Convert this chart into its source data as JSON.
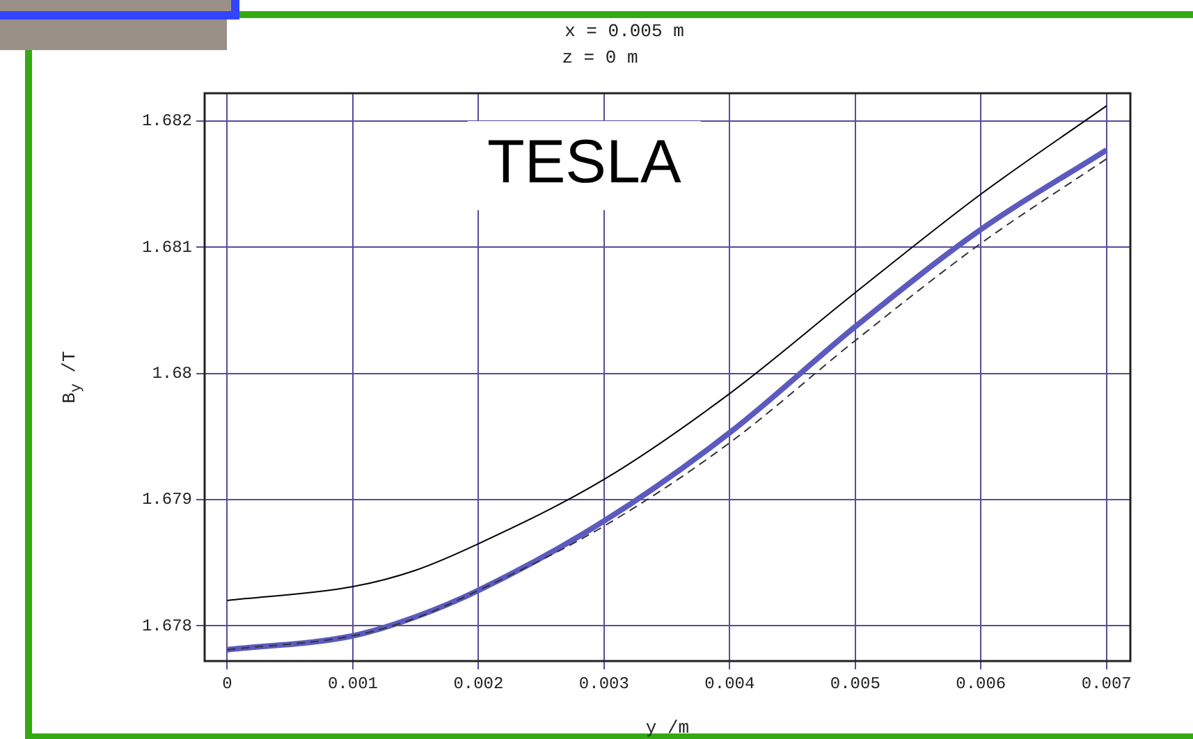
{
  "chart_data": {
    "type": "line",
    "title": "x = 0.005 m",
    "subtitle": "z = 0 m",
    "xlabel": "y /m",
    "ylabel": "B$_{y}$ /T",
    "annotations": [
      "TESLA"
    ],
    "x": [
      0,
      0.001,
      0.0015,
      0.002,
      0.003,
      0.004,
      0.005,
      0.006,
      0.007
    ],
    "series": [
      {
        "color": "#000000",
        "line_style": "solid",
        "values": [
          1.6782,
          1.67831,
          1.67844,
          1.67865,
          1.67916,
          1.67984,
          1.68064,
          1.68142,
          1.68212
        ]
      },
      {
        "color": "#333333",
        "line_style": "dashed",
        "values": [
          1.67781,
          1.67792,
          1.67806,
          1.67828,
          1.67879,
          1.67945,
          1.68026,
          1.68103,
          1.6817
        ]
      },
      {
        "color": "#5b5bbf",
        "line_style": "solid",
        "values": [
          1.67781,
          1.67792,
          1.67807,
          1.67828,
          1.67883,
          1.67953,
          1.68037,
          1.68114,
          1.68177
        ]
      }
    ],
    "xlim": [
      -0.00018,
      0.00719
    ],
    "xticks": [
      0,
      0.001,
      0.002,
      0.003,
      0.004,
      0.005,
      0.006,
      0.007
    ],
    "ylim": [
      1.67772,
      1.68222
    ],
    "yticks": [
      1.678,
      1.679,
      1.68,
      1.681,
      1.682
    ],
    "grid": true,
    "marker": "none"
  }
}
